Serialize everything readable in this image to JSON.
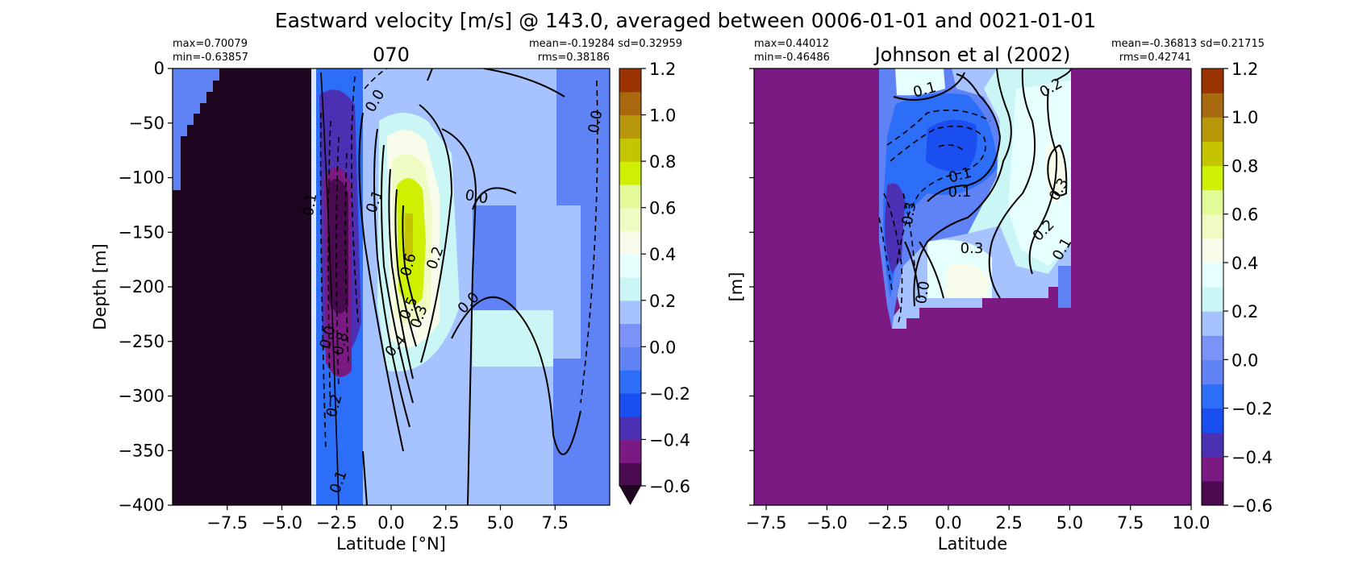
{
  "figure": {
    "suptitle": "Eastward velocity [m/s] @ 143.0, averaged between 0006-01-01 and 0021-01-01"
  },
  "colorbar": {
    "levels": [
      -0.6,
      -0.5,
      -0.4,
      -0.3,
      -0.2,
      -0.1,
      0.0,
      0.1,
      0.2,
      0.3,
      0.4,
      0.5,
      0.6,
      0.7,
      0.8,
      0.9,
      1.0,
      1.1,
      1.2
    ],
    "colors": [
      "#4a0a50",
      "#7a1a82",
      "#4b30b4",
      "#1a4ef0",
      "#2c6ef7",
      "#5f82f5",
      "#7b92f8",
      "#a6c2ff",
      "#cbf6f6",
      "#e6ffff",
      "#f7fdea",
      "#eefcc4",
      "#e2fa97",
      "#cff000",
      "#c4c400",
      "#b8980a",
      "#a9690f",
      "#9a3300",
      "#6d0000"
    ],
    "under_color": "#1f0620",
    "tick_labels": [
      "1.2",
      "1.0",
      "0.8",
      "0.6",
      "0.4",
      "0.2",
      "0.0",
      "−0.2",
      "−0.4",
      "−0.6"
    ],
    "tick_values": [
      1.2,
      1.0,
      0.8,
      0.6,
      0.4,
      0.2,
      0.0,
      -0.2,
      -0.4,
      -0.6
    ]
  },
  "chart_data": [
    {
      "type": "heatmap",
      "title": "070",
      "xlabel": "Latitude [°N]",
      "ylabel": "Depth [m]",
      "xlim": [
        -10,
        10
      ],
      "ylim": [
        -400,
        0
      ],
      "x_ticks": [
        -7.5,
        -5.0,
        -2.5,
        0.0,
        2.5,
        5.0,
        7.5
      ],
      "x_tick_labels": [
        "−7.5",
        "−5.0",
        "−2.5",
        "0.0",
        "2.5",
        "5.0",
        "7.5"
      ],
      "y_ticks": [
        0,
        -50,
        -100,
        -150,
        -200,
        -250,
        -300,
        -350,
        -400
      ],
      "y_tick_labels": [
        "0",
        "−50",
        "−100",
        "−150",
        "−200",
        "−250",
        "−300",
        "−350",
        "−400"
      ],
      "stats_left": [
        "max=0.70079",
        "min=-0.63857"
      ],
      "stats_right": [
        "mean=-0.19284 sd=0.32959",
        "rms=0.38186"
      ],
      "contour_labels": [
        "0.0",
        "0.1",
        "0.0",
        "0.0",
        "0.6",
        "0.2",
        "0.5",
        "0.3",
        "0.4",
        "0.1",
        "0.0",
        "0.1",
        "0.2",
        "0.8",
        "0.0"
      ],
      "description": "Strong eastward jet (up to ~0.7 m/s) centered near 0.5°N, 100-300 m depth; westward flow (~-0.6) near 2.5°S; land mask south of 3.5°S."
    },
    {
      "type": "heatmap",
      "title": "Johnson et al (2002)",
      "xlabel": "Latitude",
      "ylabel": "[m]",
      "xlim": [
        -8,
        10
      ],
      "ylim": [
        -400,
        0
      ],
      "x_ticks": [
        -7.5,
        -5.0,
        -2.5,
        0.0,
        2.5,
        5.0,
        7.5,
        10.0
      ],
      "x_tick_labels": [
        "−7.5",
        "−5.0",
        "−2.5",
        "0.0",
        "2.5",
        "5.0",
        "7.5",
        "10.0"
      ],
      "y_ticks": [
        0,
        -50,
        -100,
        -150,
        -200,
        -250,
        -300,
        -350,
        -400
      ],
      "stats_left": [
        "max=0.44012",
        "min=-0.46486"
      ],
      "stats_right": [
        "mean=-0.36813 sd=0.21715",
        "rms=0.42741"
      ],
      "contour_labels": [
        "0.1",
        "0.2",
        "0.1",
        "0.1",
        "0.3",
        "0.2",
        "0.1",
        "0.3",
        "0.0",
        "0.3"
      ],
      "description": "Observed section between 3°S and 5°N, 0-220 m; westward core near 2°S and 0.5°N at 50-120 m, eastward ~0.3-0.4 m/s near 4°N; missing region filled."
    }
  ]
}
